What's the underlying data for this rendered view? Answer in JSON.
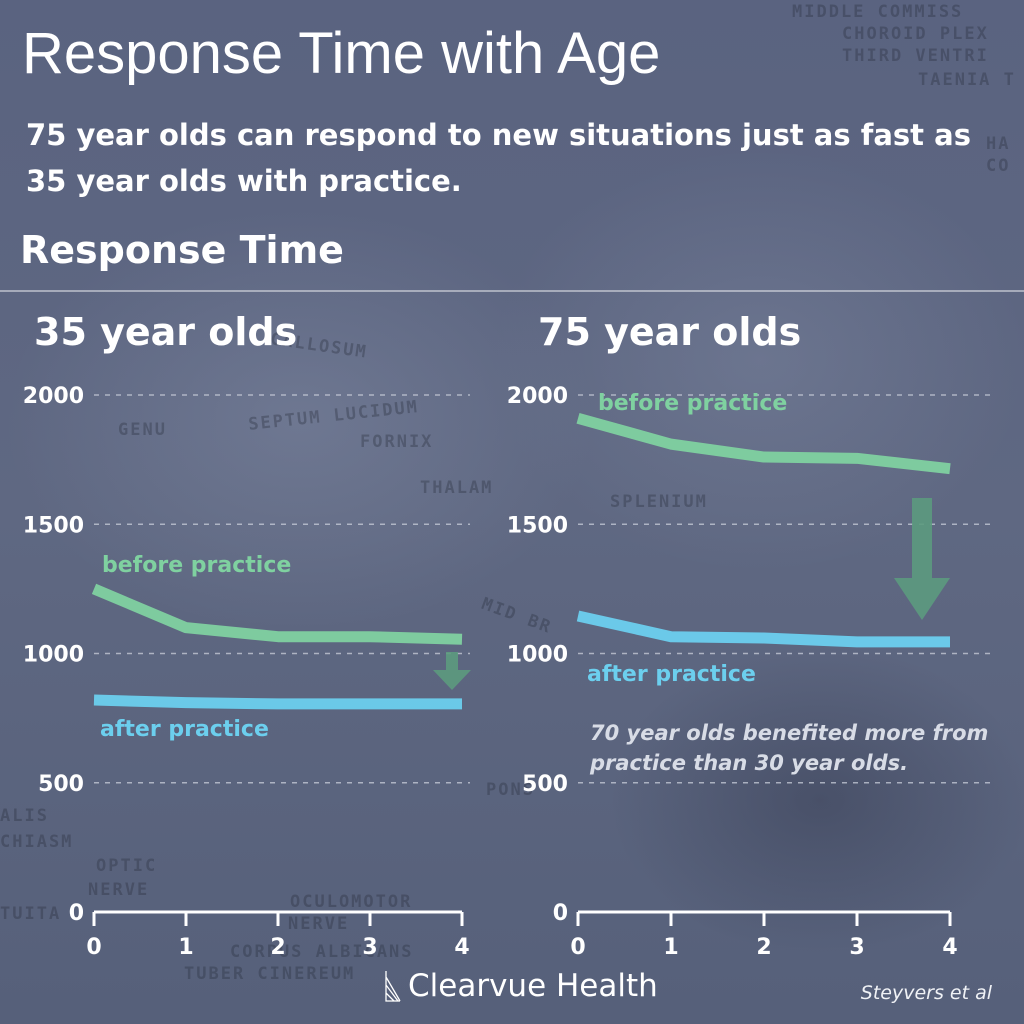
{
  "title": "Response Time with Age",
  "subtitle": "75 year olds can respond to new situations just as fast as 35 year olds with practice.",
  "section_label": "Response Time",
  "footer": {
    "brand": "Clearvue Health",
    "source": "Steyvers et al"
  },
  "background_labels": [
    "MIDDLE COMMISS",
    "CHOROID PLEX",
    "THIRD VENTRI",
    "TAENIA T",
    "CALLOSUM",
    "GENU",
    "SEPTUM LUCIDUM",
    "FORNIX",
    "THALAM",
    "SPLENIUM",
    "MID BR",
    "PONS",
    "CHIASM",
    "OPTIC",
    "NERVE",
    "OCULOMOTOR",
    "NERVE",
    "CORPUS ALBICANS",
    "TUBER CINEREUM",
    "ALIS",
    "TUITA",
    "HA",
    "CO"
  ],
  "colors": {
    "before": "#7fd1a0",
    "after": "#6ccfee",
    "arrow": "#5c9a7e",
    "axis": "#ffffff",
    "grid": "#c9ceda",
    "background": "#5c6580"
  },
  "chart_data": [
    {
      "type": "line",
      "title": "35 year olds",
      "x": [
        0,
        1,
        2,
        3,
        4
      ],
      "xlim": [
        0,
        4
      ],
      "ylim": [
        0,
        2000
      ],
      "yticks": [
        0,
        500,
        1000,
        1500,
        2000
      ],
      "xticks": [
        0,
        1,
        2,
        3,
        4
      ],
      "grid": true,
      "series": [
        {
          "name": "before practice",
          "values": [
            1250,
            1100,
            1065,
            1065,
            1055
          ]
        },
        {
          "name": "after practice",
          "values": [
            820,
            810,
            805,
            805,
            805
          ]
        }
      ],
      "annotation": ""
    },
    {
      "type": "line",
      "title": "75 year olds",
      "x": [
        0,
        1,
        2,
        3,
        4
      ],
      "xlim": [
        0,
        4
      ],
      "ylim": [
        0,
        2000
      ],
      "yticks": [
        0,
        500,
        1000,
        1500,
        2000
      ],
      "xticks": [
        0,
        1,
        2,
        3,
        4
      ],
      "grid": true,
      "series": [
        {
          "name": "before practice",
          "values": [
            1910,
            1810,
            1760,
            1755,
            1715
          ]
        },
        {
          "name": "after practice",
          "values": [
            1145,
            1065,
            1060,
            1045,
            1045
          ]
        }
      ],
      "annotation": "70 year olds benefited more from practice than 30 year olds."
    }
  ]
}
